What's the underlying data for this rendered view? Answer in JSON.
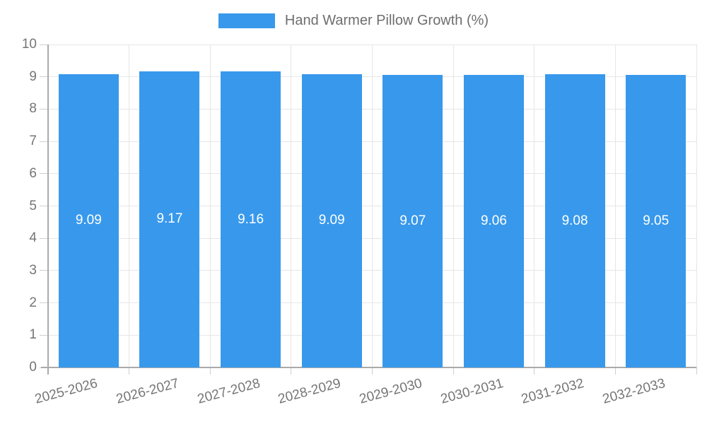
{
  "legend": {
    "label": "Hand Warmer Pillow Growth (%)"
  },
  "chart_data": {
    "type": "bar",
    "title": "Hand Warmer Pillow Growth (%)",
    "categories": [
      "2025-2026",
      "2026-2027",
      "2027-2028",
      "2028-2029",
      "2029-2030",
      "2030-2031",
      "2031-2032",
      "2032-2033"
    ],
    "values": [
      9.09,
      9.17,
      9.16,
      9.09,
      9.07,
      9.06,
      9.08,
      9.05
    ],
    "value_labels": [
      "9.09",
      "9.17",
      "9.16",
      "9.09",
      "9.07",
      "9.06",
      "9.08",
      "9.05"
    ],
    "xlabel": "",
    "ylabel": "",
    "ylim": [
      0,
      10
    ],
    "yticks": [
      0,
      1,
      2,
      3,
      4,
      5,
      6,
      7,
      8,
      9,
      10
    ],
    "grid": true,
    "legend_position": "top",
    "bar_color": "#3899ec",
    "value_label_color": "#ffffff",
    "axis_text_color": "#757575",
    "gridline_color": "#e6e6e6",
    "axis_line_color": "#aaaaaa"
  }
}
